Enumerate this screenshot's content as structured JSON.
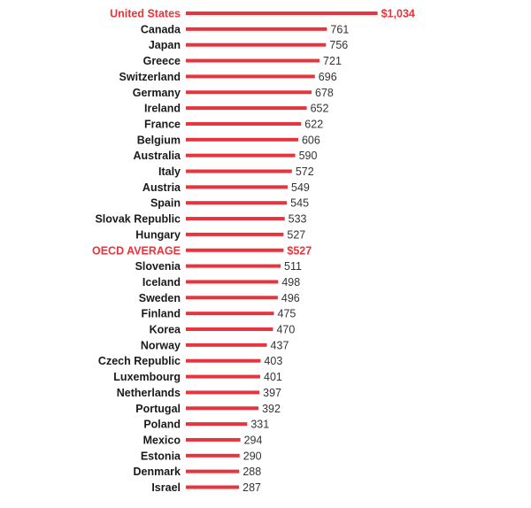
{
  "chart_data": {
    "type": "bar",
    "orientation": "horizontal",
    "categories": [
      "United States",
      "Canada",
      "Japan",
      "Greece",
      "Switzerland",
      "Germany",
      "Ireland",
      "France",
      "Belgium",
      "Australia",
      "Italy",
      "Austria",
      "Spain",
      "Slovak Republic",
      "Hungary",
      "OECD AVERAGE",
      "Slovenia",
      "Iceland",
      "Sweden",
      "Finland",
      "Korea",
      "Norway",
      "Czech Republic",
      "Luxembourg",
      "Netherlands",
      "Portugal",
      "Poland",
      "Mexico",
      "Estonia",
      "Denmark",
      "Israel"
    ],
    "values": [
      1034,
      761,
      756,
      721,
      696,
      678,
      652,
      622,
      606,
      590,
      572,
      549,
      545,
      533,
      527,
      527,
      511,
      498,
      496,
      475,
      470,
      437,
      403,
      401,
      397,
      392,
      331,
      294,
      290,
      288,
      287
    ],
    "value_labels": [
      "$1,034",
      "761",
      "756",
      "721",
      "696",
      "678",
      "652",
      "622",
      "606",
      "590",
      "572",
      "549",
      "545",
      "533",
      "527",
      "$527",
      "511",
      "498",
      "496",
      "475",
      "470",
      "437",
      "403",
      "401",
      "397",
      "392",
      "331",
      "294",
      "290",
      "288",
      "287"
    ],
    "highlighted": [
      "United States",
      "OECD AVERAGE"
    ],
    "title": "",
    "xlabel": "",
    "ylabel": "",
    "xlim": [
      0,
      1034
    ],
    "grid": false
  },
  "colors": {
    "bar": "#e8343c",
    "highlight_text": "#e8343c",
    "label_text": "#1a1a1a",
    "value_text": "#333333"
  }
}
